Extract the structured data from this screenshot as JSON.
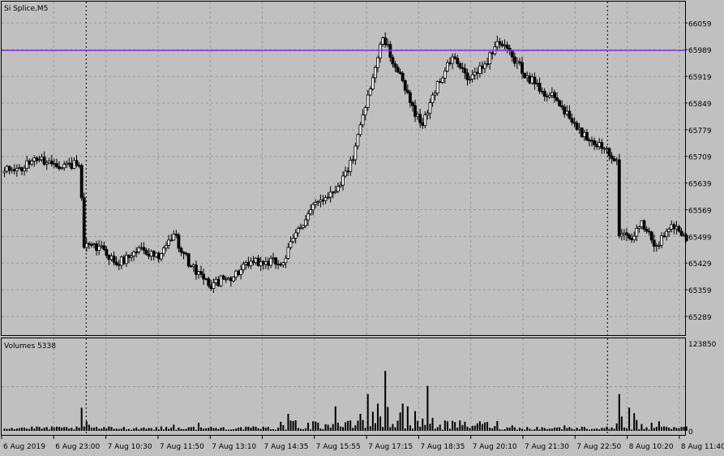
{
  "colors": {
    "background": "#c0c0c0",
    "grid": "#9a9a9a",
    "candle": "#000000",
    "level_line": "#8a2be2",
    "period_separator": "#000000"
  },
  "chart_data": [
    {
      "type": "candlestick",
      "title": "Si Splice,M5",
      "ylim": [
        65240,
        66115
      ],
      "y_ticks": [
        "66059",
        "65989",
        "65919",
        "65849",
        "65779",
        "65709",
        "65639",
        "65569",
        "65499",
        "65429",
        "65359",
        "65289"
      ],
      "x_ticks": [
        "6 Aug 2019",
        "6 Aug 23:00",
        "7 Aug 10:30",
        "7 Aug 11:50",
        "7 Aug 13:10",
        "7 Aug 14:35",
        "7 Aug 15:55",
        "7 Aug 17:15",
        "7 Aug 18:35",
        "7 Aug 20:10",
        "7 Aug 21:30",
        "7 Aug 22:50",
        "8 Aug 10:20",
        "8 Aug 11:40"
      ],
      "horizontal_line": 65987,
      "separators_at_tick": [
        "6 Aug 23:00",
        "7 Aug 22:50"
      ],
      "grid": true,
      "anchors": [
        [
          0,
          65670
        ],
        [
          8,
          65678
        ],
        [
          12,
          65705
        ],
        [
          20,
          65690
        ],
        [
          30,
          65685
        ],
        [
          31,
          65600
        ],
        [
          32,
          65470
        ],
        [
          40,
          65465
        ],
        [
          45,
          65425
        ],
        [
          55,
          65470
        ],
        [
          62,
          65440
        ],
        [
          68,
          65505
        ],
        [
          75,
          65420
        ],
        [
          82,
          65370
        ],
        [
          90,
          65390
        ],
        [
          100,
          65430
        ],
        [
          112,
          65430
        ],
        [
          118,
          65520
        ],
        [
          126,
          65590
        ],
        [
          134,
          65630
        ],
        [
          140,
          65700
        ],
        [
          146,
          65870
        ],
        [
          152,
          66020
        ],
        [
          158,
          65930
        ],
        [
          163,
          65850
        ],
        [
          168,
          65790
        ],
        [
          172,
          65870
        ],
        [
          180,
          65970
        ],
        [
          186,
          65910
        ],
        [
          192,
          65940
        ],
        [
          198,
          66010
        ],
        [
          204,
          65970
        ],
        [
          210,
          65920
        ],
        [
          216,
          65880
        ],
        [
          222,
          65855
        ],
        [
          230,
          65780
        ],
        [
          236,
          65750
        ],
        [
          242,
          65730
        ],
        [
          246,
          65700
        ],
        [
          247,
          65500
        ],
        [
          252,
          65490
        ],
        [
          256,
          65540
        ],
        [
          262,
          65475
        ],
        [
          268,
          65530
        ],
        [
          274,
          65500
        ]
      ]
    },
    {
      "type": "bar",
      "title": "Volumes 5338",
      "ylim": [
        0,
        123850
      ],
      "y_ticks": [
        "123850",
        "0"
      ],
      "last_value": 5338,
      "spikes": [
        [
          31,
          34000
        ],
        [
          33,
          14000
        ],
        [
          34,
          9000
        ],
        [
          68,
          9000
        ],
        [
          78,
          12000
        ],
        [
          114,
          25000
        ],
        [
          115,
          15000
        ],
        [
          126,
          12000
        ],
        [
          133,
          36000
        ],
        [
          134,
          12000
        ],
        [
          143,
          25000
        ],
        [
          144,
          16000
        ],
        [
          146,
          54000
        ],
        [
          148,
          28000
        ],
        [
          150,
          40000
        ],
        [
          151,
          21000
        ],
        [
          153,
          88000
        ],
        [
          154,
          35000
        ],
        [
          159,
          27000
        ],
        [
          160,
          40000
        ],
        [
          162,
          36000
        ],
        [
          165,
          29000
        ],
        [
          167,
          6000
        ],
        [
          168,
          18000
        ],
        [
          170,
          66000
        ],
        [
          172,
          19000
        ],
        [
          178,
          14000
        ],
        [
          190,
          11000
        ],
        [
          204,
          8000
        ],
        [
          225,
          8000
        ],
        [
          246,
          11000
        ],
        [
          247,
          54000
        ],
        [
          248,
          21000
        ],
        [
          251,
          34000
        ],
        [
          253,
          26000
        ],
        [
          254,
          16000
        ],
        [
          256,
          10000
        ],
        [
          260,
          12000
        ],
        [
          263,
          14000
        ]
      ]
    }
  ]
}
